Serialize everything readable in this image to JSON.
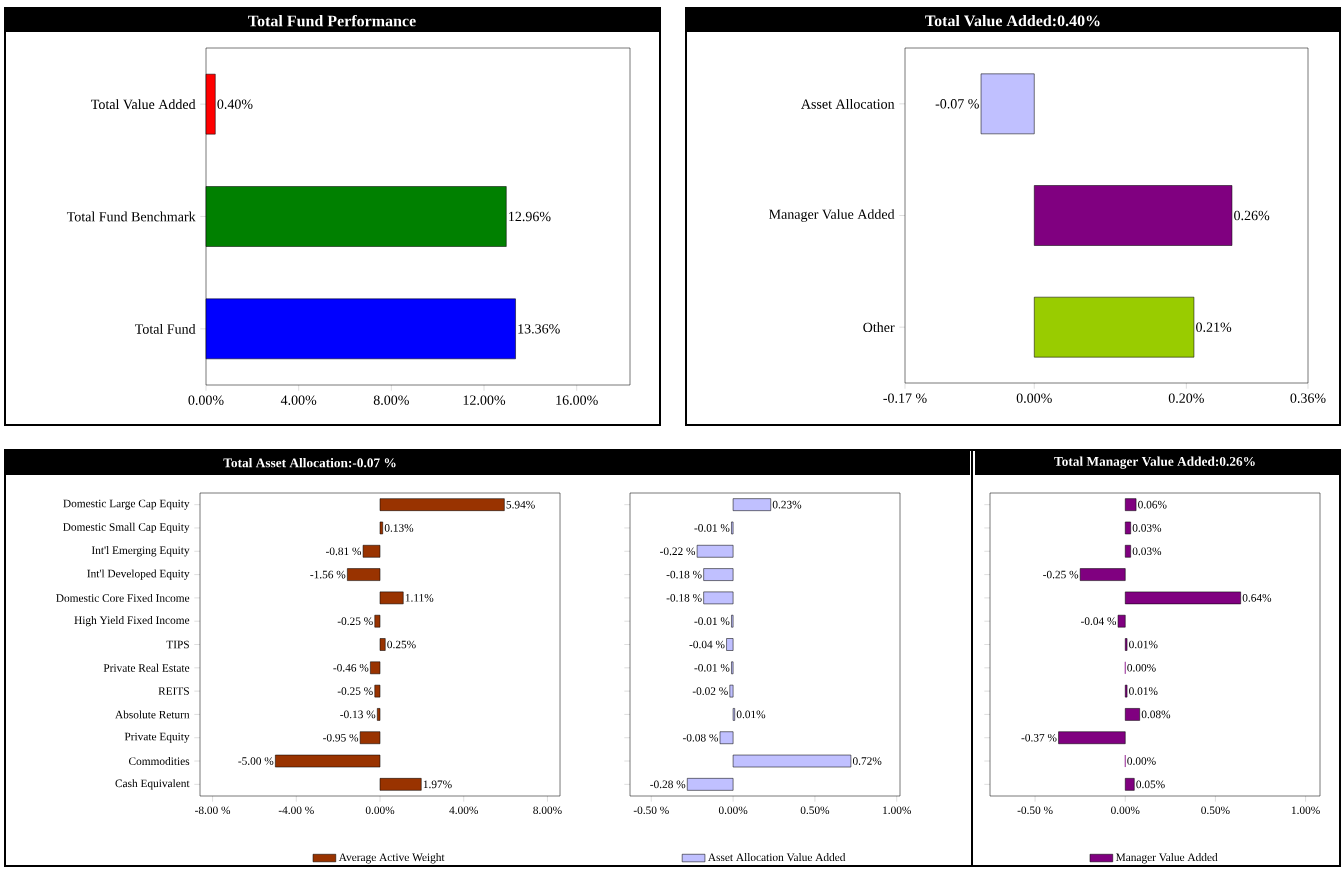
{
  "chart_data": [
    {
      "type": "bar",
      "orientation": "horizontal",
      "title": "Total Fund Performance",
      "categories": [
        "Total Value Added",
        "Total Fund Benchmark",
        "Total Fund"
      ],
      "values": [
        0.4,
        12.96,
        13.36
      ],
      "colors": [
        "#ff0000",
        "#008000",
        "#0000ff"
      ],
      "value_labels": [
        "0.40%",
        "12.96%",
        "13.36%"
      ],
      "xlim": [
        0,
        18.3
      ],
      "xticks": [
        {
          "value": 0,
          "label": "0.00%"
        },
        {
          "value": 4,
          "label": "4.00%"
        },
        {
          "value": 8,
          "label": "8.00%"
        },
        {
          "value": 12,
          "label": "12.00%"
        },
        {
          "value": 16,
          "label": "16.00%"
        }
      ]
    },
    {
      "type": "bar",
      "orientation": "horizontal",
      "title": "Total Value Added:0.40%",
      "categories": [
        "Asset Allocation",
        "Manager Value Added",
        "Other"
      ],
      "values": [
        -0.07,
        0.26,
        0.21
      ],
      "colors": [
        "#c0c0ff",
        "#800080",
        "#99cc00"
      ],
      "value_labels": [
        "-0.07 %",
        "0.26%",
        "0.21%"
      ],
      "xlim": [
        -0.17,
        0.36
      ],
      "xticks": [
        {
          "value": -0.17,
          "label": "-0.17 %"
        },
        {
          "value": 0,
          "label": "0.00%"
        },
        {
          "value": 0.2,
          "label": "0.20%"
        },
        {
          "value": 0.36,
          "label": "0.36%"
        }
      ]
    },
    {
      "type": "bar",
      "orientation": "horizontal",
      "title": "Total Asset Allocation:-0.07 %",
      "categories": [
        "Domestic Large Cap Equity",
        "Domestic Small Cap Equity",
        "Int'l Emerging Equity",
        "Int'l Developed Equity",
        "Domestic Core Fixed Income",
        "High Yield Fixed Income",
        "TIPS",
        "Private Real Estate",
        "REITS",
        "Absolute Return",
        "Private Equity",
        "Commodities",
        "Cash Equivalent"
      ],
      "series": [
        {
          "name": "Average Active Weight",
          "color": "#993300",
          "values": [
            5.94,
            0.13,
            -0.81,
            -1.56,
            1.11,
            -0.25,
            0.25,
            -0.46,
            -0.25,
            -0.13,
            -0.95,
            -5.0,
            1.97
          ],
          "value_labels": [
            "5.94%",
            "0.13%",
            "-0.81 %",
            "-1.56 %",
            "1.11%",
            "-0.25 %",
            "0.25%",
            "-0.46 %",
            "-0.25 %",
            "-0.13 %",
            "-0.95 %",
            "-5.00 %",
            "1.97%"
          ]
        }
      ],
      "xlim": [
        -8.6,
        8.6
      ],
      "xticks": [
        {
          "value": -8,
          "label": "-8.00 %"
        },
        {
          "value": -4,
          "label": "-4.00 %"
        },
        {
          "value": 0,
          "label": "0.00%"
        },
        {
          "value": 4,
          "label": "4.00%"
        },
        {
          "value": 8,
          "label": "8.00%"
        }
      ],
      "legend": "bottom"
    },
    {
      "type": "bar",
      "orientation": "horizontal",
      "categories": [
        null,
        null,
        null,
        null,
        null,
        null,
        null,
        null,
        null,
        null,
        null,
        null,
        null
      ],
      "series": [
        {
          "name": "Asset Allocation Value Added",
          "color": "#c0c0ff",
          "values": [
            0.23,
            -0.01,
            -0.22,
            -0.18,
            -0.18,
            -0.01,
            -0.04,
            -0.01,
            -0.02,
            0.01,
            -0.08,
            0.72,
            -0.28
          ],
          "value_labels": [
            "0.23%",
            "-0.01 %",
            "-0.22 %",
            "-0.18 %",
            "-0.18 %",
            "-0.01 %",
            "-0.04 %",
            "-0.01 %",
            "-0.02 %",
            "0.01%",
            "-0.08 %",
            "0.72%",
            "-0.28 %"
          ]
        }
      ],
      "xlim": [
        -0.63,
        1.02
      ],
      "xticks": [
        {
          "value": -0.5,
          "label": "-0.50 %"
        },
        {
          "value": 0,
          "label": "0.00%"
        },
        {
          "value": 0.5,
          "label": "0.50%"
        },
        {
          "value": 1.0,
          "label": "1.00%"
        }
      ],
      "legend": "bottom"
    },
    {
      "type": "bar",
      "orientation": "horizontal",
      "title": "Total Manager Value Added:0.26%",
      "categories": [
        null,
        null,
        null,
        null,
        null,
        null,
        null,
        null,
        null,
        null,
        null,
        null,
        null
      ],
      "series": [
        {
          "name": "Manager Value Added",
          "color": "#800080",
          "values": [
            0.06,
            0.03,
            0.03,
            -0.25,
            0.64,
            -0.04,
            0.01,
            0.0,
            0.01,
            0.08,
            -0.37,
            0.0,
            0.05
          ],
          "value_labels": [
            "0.06%",
            "0.03%",
            "0.03%",
            "-0.25 %",
            "0.64%",
            "-0.04 %",
            "0.01%",
            "0.00%",
            "0.01%",
            "0.08%",
            "-0.37 %",
            "0.00%",
            "0.05%"
          ]
        }
      ],
      "xlim": [
        -0.75,
        1.08
      ],
      "xticks": [
        {
          "value": -0.5,
          "label": "-0.50 %"
        },
        {
          "value": 0,
          "label": "0.00%"
        },
        {
          "value": 0.5,
          "label": "0.50%"
        },
        {
          "value": 1.0,
          "label": "1.00%"
        }
      ],
      "legend": "bottom"
    }
  ]
}
